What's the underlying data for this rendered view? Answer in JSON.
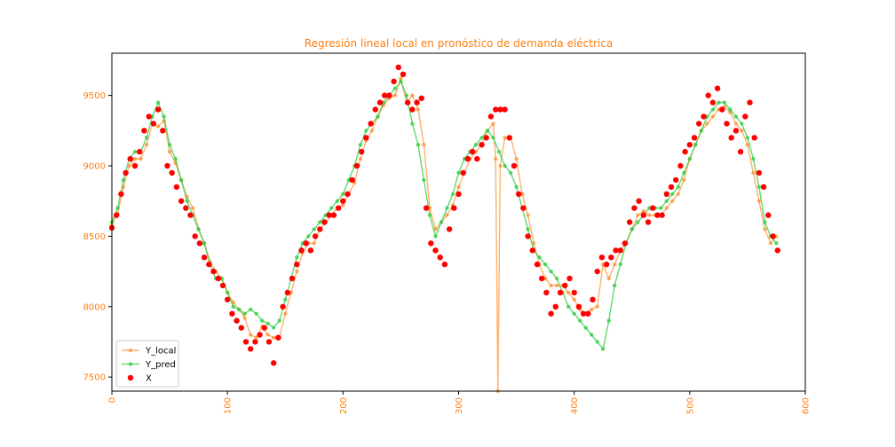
{
  "chart_data": {
    "type": "line",
    "title": "Regresión lineal local en pronóstico de demanda eléctrica",
    "xlabel": "",
    "ylabel": "",
    "xlim": [
      0,
      600
    ],
    "ylim": [
      7400,
      9800
    ],
    "xticks": [
      0,
      100,
      200,
      300,
      400,
      500,
      600
    ],
    "yticks": [
      7500,
      8000,
      8500,
      9000,
      9500
    ],
    "grid": false,
    "legend_position": "lower-left",
    "colors": {
      "title": "#ff7f0e",
      "ticks": "#ff7f0e",
      "y_local": "#ff7f0e",
      "y_pred": "#2ecc40",
      "x": "#ff0000"
    },
    "legend": [
      "Y_local",
      "Y_pred",
      "X"
    ],
    "series": [
      {
        "name": "Y_local",
        "x": [
          0,
          5,
          10,
          15,
          20,
          25,
          30,
          35,
          40,
          45,
          50,
          55,
          60,
          65,
          70,
          75,
          80,
          85,
          90,
          95,
          100,
          105,
          110,
          115,
          120,
          125,
          130,
          135,
          140,
          145,
          150,
          155,
          160,
          165,
          170,
          175,
          180,
          185,
          190,
          195,
          200,
          205,
          210,
          215,
          220,
          225,
          230,
          235,
          240,
          245,
          250,
          255,
          260,
          265,
          270,
          275,
          280,
          285,
          290,
          295,
          300,
          305,
          310,
          315,
          320,
          325,
          330,
          332,
          334,
          336,
          340,
          345,
          350,
          355,
          360,
          365,
          370,
          375,
          380,
          385,
          390,
          395,
          400,
          405,
          410,
          415,
          420,
          425,
          430,
          435,
          440,
          445,
          450,
          455,
          460,
          465,
          470,
          475,
          480,
          485,
          490,
          495,
          500,
          505,
          510,
          515,
          520,
          525,
          530,
          535,
          540,
          545,
          550,
          555,
          560,
          565,
          570,
          575
        ],
        "values": [
          8580,
          8660,
          8850,
          9000,
          9050,
          9050,
          9150,
          9300,
          9280,
          9320,
          9100,
          9020,
          8900,
          8780,
          8700,
          8550,
          8450,
          8320,
          8250,
          8200,
          8100,
          8030,
          7980,
          7920,
          7800,
          7780,
          7860,
          7800,
          7780,
          7780,
          7950,
          8100,
          8250,
          8380,
          8450,
          8450,
          8550,
          8600,
          8650,
          8700,
          8720,
          8800,
          8880,
          9050,
          9180,
          9250,
          9350,
          9430,
          9480,
          9500,
          9620,
          9450,
          9500,
          9400,
          9150,
          8700,
          8550,
          8600,
          8650,
          8720,
          8850,
          8950,
          9050,
          9100,
          9150,
          9250,
          9300,
          9050,
          7400,
          9000,
          9200,
          9200,
          9050,
          8800,
          8650,
          8450,
          8300,
          8200,
          8150,
          8150,
          8150,
          8100,
          8050,
          7980,
          7950,
          7980,
          8000,
          8300,
          8200,
          8300,
          8400,
          8450,
          8550,
          8650,
          8680,
          8650,
          8650,
          8650,
          8700,
          8750,
          8800,
          8900,
          9050,
          9150,
          9250,
          9300,
          9350,
          9400,
          9420,
          9380,
          9300,
          9250,
          9150,
          8950,
          8750,
          8550,
          8450,
          8500
        ]
      },
      {
        "name": "Y_pred",
        "x": [
          0,
          5,
          10,
          15,
          20,
          25,
          30,
          35,
          40,
          45,
          50,
          55,
          60,
          65,
          70,
          75,
          80,
          85,
          90,
          95,
          100,
          105,
          110,
          115,
          120,
          125,
          130,
          135,
          140,
          145,
          150,
          155,
          160,
          165,
          170,
          175,
          180,
          185,
          190,
          195,
          200,
          205,
          210,
          215,
          220,
          225,
          230,
          235,
          240,
          245,
          250,
          255,
          260,
          265,
          270,
          275,
          280,
          285,
          290,
          295,
          300,
          305,
          310,
          315,
          320,
          325,
          330,
          335,
          340,
          345,
          350,
          355,
          360,
          365,
          370,
          375,
          380,
          385,
          390,
          395,
          400,
          405,
          410,
          415,
          420,
          425,
          430,
          435,
          440,
          445,
          450,
          455,
          460,
          465,
          470,
          475,
          480,
          485,
          490,
          495,
          500,
          505,
          510,
          515,
          520,
          525,
          530,
          535,
          540,
          545,
          550,
          555,
          560,
          565,
          570,
          575
        ],
        "values": [
          8600,
          8700,
          8900,
          9050,
          9100,
          9100,
          9200,
          9350,
          9450,
          9350,
          9150,
          9050,
          8900,
          8750,
          8650,
          8550,
          8450,
          8300,
          8200,
          8200,
          8100,
          8000,
          7980,
          7950,
          7980,
          7950,
          7900,
          7880,
          7850,
          7900,
          8050,
          8200,
          8350,
          8450,
          8500,
          8550,
          8600,
          8650,
          8700,
          8750,
          8800,
          8900,
          9000,
          9150,
          9250,
          9300,
          9350,
          9450,
          9500,
          9550,
          9600,
          9500,
          9300,
          9150,
          8900,
          8650,
          8500,
          8600,
          8700,
          8800,
          8950,
          9050,
          9100,
          9150,
          9200,
          9250,
          9200,
          9100,
          9000,
          8950,
          8850,
          8700,
          8550,
          8400,
          8350,
          8300,
          8250,
          8200,
          8100,
          8000,
          7950,
          7900,
          7850,
          7800,
          7750,
          7700,
          7900,
          8150,
          8300,
          8450,
          8550,
          8600,
          8650,
          8700,
          8700,
          8700,
          8750,
          8800,
          8850,
          8950,
          9050,
          9150,
          9250,
          9350,
          9400,
          9450,
          9450,
          9400,
          9350,
          9300,
          9200,
          9050,
          8850,
          8600,
          8500,
          8450
        ]
      },
      {
        "name": "X",
        "x": [
          0,
          4,
          8,
          12,
          16,
          20,
          24,
          28,
          32,
          36,
          40,
          44,
          48,
          52,
          56,
          60,
          64,
          68,
          72,
          76,
          80,
          84,
          88,
          92,
          96,
          100,
          104,
          108,
          112,
          116,
          120,
          124,
          128,
          132,
          136,
          140,
          144,
          148,
          152,
          156,
          160,
          164,
          168,
          172,
          176,
          180,
          184,
          188,
          192,
          196,
          200,
          204,
          208,
          212,
          216,
          220,
          224,
          228,
          232,
          236,
          240,
          244,
          248,
          252,
          256,
          260,
          264,
          268,
          272,
          276,
          280,
          284,
          288,
          292,
          296,
          300,
          304,
          308,
          312,
          316,
          320,
          324,
          328,
          332,
          336,
          340,
          344,
          348,
          352,
          356,
          360,
          364,
          368,
          372,
          376,
          380,
          384,
          388,
          392,
          396,
          400,
          404,
          408,
          412,
          416,
          420,
          424,
          428,
          432,
          436,
          440,
          444,
          448,
          452,
          456,
          460,
          464,
          468,
          472,
          476,
          480,
          484,
          488,
          492,
          496,
          500,
          504,
          508,
          512,
          516,
          520,
          524,
          528,
          532,
          536,
          540,
          544,
          548,
          552,
          556,
          560,
          564,
          568,
          572,
          576
        ],
        "values": [
          8560,
          8650,
          8800,
          8950,
          9050,
          9000,
          9100,
          9250,
          9350,
          9300,
          9400,
          9250,
          9000,
          8950,
          8850,
          8750,
          8700,
          8650,
          8500,
          8450,
          8350,
          8300,
          8250,
          8200,
          8150,
          8050,
          7950,
          7900,
          7850,
          7750,
          7700,
          7750,
          7800,
          7850,
          7750,
          7600,
          7780,
          8000,
          8100,
          8200,
          8300,
          8400,
          8450,
          8400,
          8500,
          8550,
          8600,
          8650,
          8650,
          8700,
          8750,
          8800,
          8900,
          9000,
          9100,
          9200,
          9300,
          9400,
          9450,
          9500,
          9500,
          9600,
          9700,
          9650,
          9450,
          9400,
          9450,
          9480,
          8700,
          8450,
          8400,
          8350,
          8300,
          8550,
          8700,
          8800,
          8950,
          9050,
          9100,
          9050,
          9150,
          9200,
          9350,
          9400,
          9400,
          9400,
          9200,
          9000,
          8800,
          8700,
          8500,
          8400,
          8300,
          8200,
          8100,
          7950,
          8000,
          8100,
          8150,
          8200,
          8100,
          8000,
          7950,
          7950,
          8050,
          8250,
          8350,
          8300,
          8350,
          8400,
          8400,
          8450,
          8600,
          8700,
          8750,
          8650,
          8600,
          8700,
          8650,
          8650,
          8800,
          8850,
          8900,
          9000,
          9100,
          9150,
          9200,
          9300,
          9350,
          9500,
          9450,
          9550,
          9400,
          9300,
          9200,
          9250,
          9100,
          9350,
          9450,
          9200,
          8950,
          8850,
          8650,
          8500,
          8400
        ]
      }
    ]
  }
}
